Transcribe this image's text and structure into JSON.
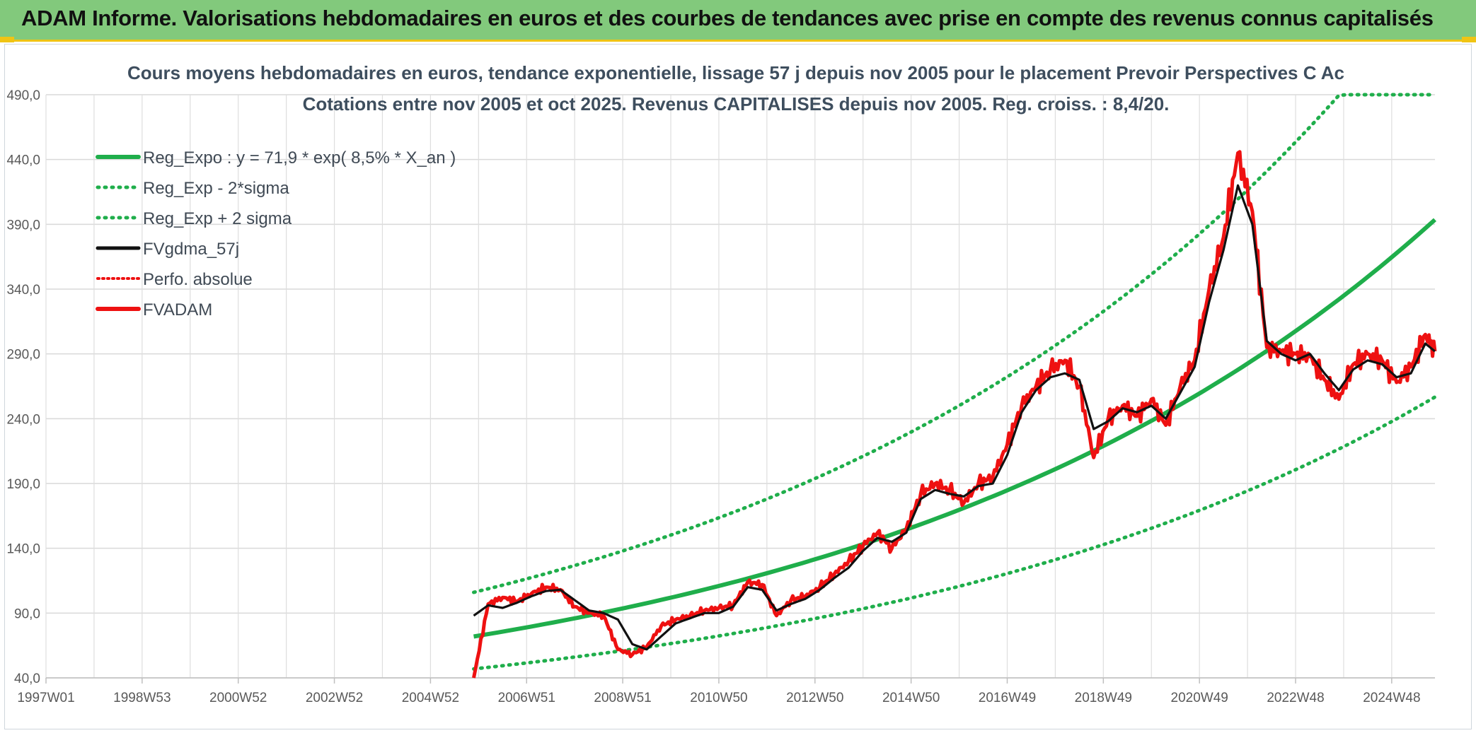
{
  "header": {
    "title": "ADAM Informe. Valorisations hebdomadaires en euros et des courbes de tendances avec prise en compte des revenus connus capitalisés"
  },
  "colors": {
    "banner": "#82c97c",
    "accent": "#f0c414",
    "green": "#1fae4b",
    "red": "#ee1111",
    "black": "#111111"
  },
  "chart_data": {
    "type": "line",
    "title": "Cours moyens hebdomadaires en euros, tendance exponentielle, lissage 57 j depuis nov 2005 pour le placement Prevoir Perspectives C Ac",
    "subtitle": "Cotations entre nov 2005 et oct 2025. Revenus CAPITALISES depuis nov 2005. Reg. croiss. : 8,4/20.",
    "xlabel": "",
    "ylabel": "",
    "xlim": [
      1997.0,
      2025.9
    ],
    "ylim": [
      40,
      490
    ],
    "y_ticks": [
      "40,0",
      "90,0",
      "140,0",
      "190,0",
      "240,0",
      "290,0",
      "340,0",
      "390,0",
      "440,0",
      "490,0"
    ],
    "y_tick_values": [
      40,
      90,
      140,
      190,
      240,
      290,
      340,
      390,
      440,
      490
    ],
    "x_ticks": [
      "1997W01",
      "1998W53",
      "2000W52",
      "2002W52",
      "2004W52",
      "2006W51",
      "2008W51",
      "2010W50",
      "2012W50",
      "2014W50",
      "2016W49",
      "2018W49",
      "2020W49",
      "2022W48",
      "2024W48"
    ],
    "x_tick_values": [
      1997.0,
      1999.0,
      2001.0,
      2003.0,
      2005.0,
      2007.0,
      2009.0,
      2011.0,
      2013.0,
      2015.0,
      2017.0,
      2019.0,
      2021.0,
      2023.0,
      2025.0
    ],
    "grid": true,
    "legend_position": "top-left",
    "series": [
      {
        "name": "Reg_Expo : y = 71,9 * exp( 8,5% *  X_an )",
        "style": "solid",
        "color": "#1fae4b",
        "x": [
          2005.9,
          2025.9
        ],
        "formula": "71.9*exp(0.085*(x-2005.9))"
      },
      {
        "name": "Reg_Exp - 2*sigma",
        "style": "dotted",
        "color": "#1fae4b",
        "x": [
          2005.9,
          2025.9
        ],
        "formula": "46.9*exp(0.085*(x-2005.9))"
      },
      {
        "name": "Reg_Exp + 2 sigma",
        "style": "dotted",
        "color": "#1fae4b",
        "x": [
          2005.9,
          2025.9
        ],
        "formula": "min(490, 106*exp(0.085*(x-2005.9)))"
      },
      {
        "name": "FVgdma_57j",
        "style": "solid",
        "color": "#111111",
        "x": [
          2005.9,
          2006.2,
          2006.5,
          2006.8,
          2007.1,
          2007.4,
          2007.7,
          2008.0,
          2008.3,
          2008.6,
          2008.9,
          2009.2,
          2009.5,
          2009.8,
          2010.1,
          2010.4,
          2010.7,
          2011.0,
          2011.3,
          2011.6,
          2011.9,
          2012.2,
          2012.5,
          2012.8,
          2013.1,
          2013.4,
          2013.7,
          2014.0,
          2014.3,
          2014.6,
          2014.9,
          2015.2,
          2015.5,
          2015.8,
          2016.1,
          2016.4,
          2016.7,
          2017.0,
          2017.3,
          2017.6,
          2017.9,
          2018.2,
          2018.5,
          2018.8,
          2019.1,
          2019.4,
          2019.7,
          2020.0,
          2020.3,
          2020.6,
          2020.9,
          2021.2,
          2021.5,
          2021.8,
          2022.1,
          2022.4,
          2022.7,
          2023.0,
          2023.3,
          2023.6,
          2023.9,
          2024.2,
          2024.5,
          2024.8,
          2025.1,
          2025.4,
          2025.7,
          2025.9
        ],
        "y": [
          88,
          96,
          94,
          98,
          103,
          107,
          108,
          100,
          92,
          90,
          85,
          66,
          62,
          72,
          82,
          86,
          90,
          90,
          95,
          110,
          108,
          92,
          97,
          101,
          108,
          117,
          125,
          138,
          148,
          145,
          152,
          178,
          185,
          182,
          180,
          188,
          190,
          212,
          245,
          262,
          272,
          275,
          270,
          232,
          238,
          248,
          245,
          250,
          240,
          260,
          280,
          330,
          370,
          420,
          390,
          300,
          290,
          285,
          290,
          275,
          262,
          278,
          285,
          282,
          272,
          275,
          298,
          292
        ]
      },
      {
        "name": "Perfo. absolue",
        "style": "dotted",
        "color": "#ee1111",
        "x": [
          2005.9,
          2006.2,
          2006.5,
          2006.8,
          2007.1,
          2007.4,
          2007.7,
          2008.0,
          2008.3,
          2008.6,
          2008.9,
          2009.2,
          2009.5,
          2009.8,
          2010.1,
          2010.4,
          2010.7,
          2011.0,
          2011.3,
          2011.6,
          2011.9,
          2012.2,
          2012.5,
          2012.8,
          2013.1,
          2013.4,
          2013.7,
          2014.0,
          2014.3,
          2014.6,
          2014.9,
          2015.2,
          2015.5,
          2015.8,
          2016.1,
          2016.4,
          2016.7,
          2017.0,
          2017.3,
          2017.6,
          2017.9,
          2018.2,
          2018.5,
          2018.8,
          2019.1,
          2019.4,
          2019.7,
          2020.0,
          2020.3,
          2020.6,
          2020.9,
          2021.2,
          2021.5,
          2021.8,
          2022.1,
          2022.4,
          2022.7,
          2023.0,
          2023.3,
          2023.6,
          2023.9,
          2024.2,
          2024.5,
          2024.8,
          2025.1,
          2025.4,
          2025.7,
          2025.9
        ],
        "y": [
          40,
          97,
          102,
          99,
          105,
          110,
          108,
          95,
          90,
          88,
          62,
          58,
          64,
          80,
          85,
          88,
          92,
          94,
          96,
          114,
          112,
          88,
          100,
          103,
          110,
          120,
          130,
          142,
          152,
          140,
          155,
          182,
          190,
          185,
          175,
          190,
          195,
          220,
          250,
          265,
          278,
          285,
          265,
          210,
          240,
          250,
          242,
          255,
          235,
          265,
          285,
          340,
          380,
          445,
          400,
          295,
          292,
          290,
          288,
          270,
          255,
          282,
          290,
          285,
          268,
          280,
          305,
          292
        ]
      },
      {
        "name": "FVADAM",
        "style": "solid",
        "color": "#ee1111",
        "x": [
          2005.9,
          2006.2,
          2006.5,
          2006.8,
          2007.1,
          2007.4,
          2007.7,
          2008.0,
          2008.3,
          2008.6,
          2008.9,
          2009.2,
          2009.5,
          2009.8,
          2010.1,
          2010.4,
          2010.7,
          2011.0,
          2011.3,
          2011.6,
          2011.9,
          2012.2,
          2012.5,
          2012.8,
          2013.1,
          2013.4,
          2013.7,
          2014.0,
          2014.3,
          2014.6,
          2014.9,
          2015.2,
          2015.5,
          2015.8,
          2016.1,
          2016.4,
          2016.7,
          2017.0,
          2017.3,
          2017.6,
          2017.9,
          2018.2,
          2018.5,
          2018.8,
          2019.1,
          2019.4,
          2019.7,
          2020.0,
          2020.3,
          2020.6,
          2020.9,
          2021.2,
          2021.5,
          2021.8,
          2022.1,
          2022.4,
          2022.7,
          2023.0,
          2023.3,
          2023.6,
          2023.9,
          2024.2,
          2024.5,
          2024.8,
          2025.1,
          2025.4,
          2025.7,
          2025.9
        ],
        "y": [
          40,
          97,
          102,
          99,
          105,
          110,
          108,
          95,
          90,
          88,
          62,
          58,
          64,
          80,
          85,
          88,
          92,
          94,
          96,
          114,
          112,
          88,
          100,
          103,
          110,
          120,
          130,
          142,
          152,
          140,
          155,
          182,
          190,
          185,
          175,
          190,
          195,
          220,
          250,
          265,
          278,
          285,
          265,
          210,
          240,
          250,
          242,
          255,
          235,
          265,
          285,
          340,
          380,
          445,
          400,
          295,
          292,
          290,
          288,
          270,
          255,
          282,
          290,
          285,
          268,
          280,
          305,
          292
        ]
      }
    ]
  }
}
